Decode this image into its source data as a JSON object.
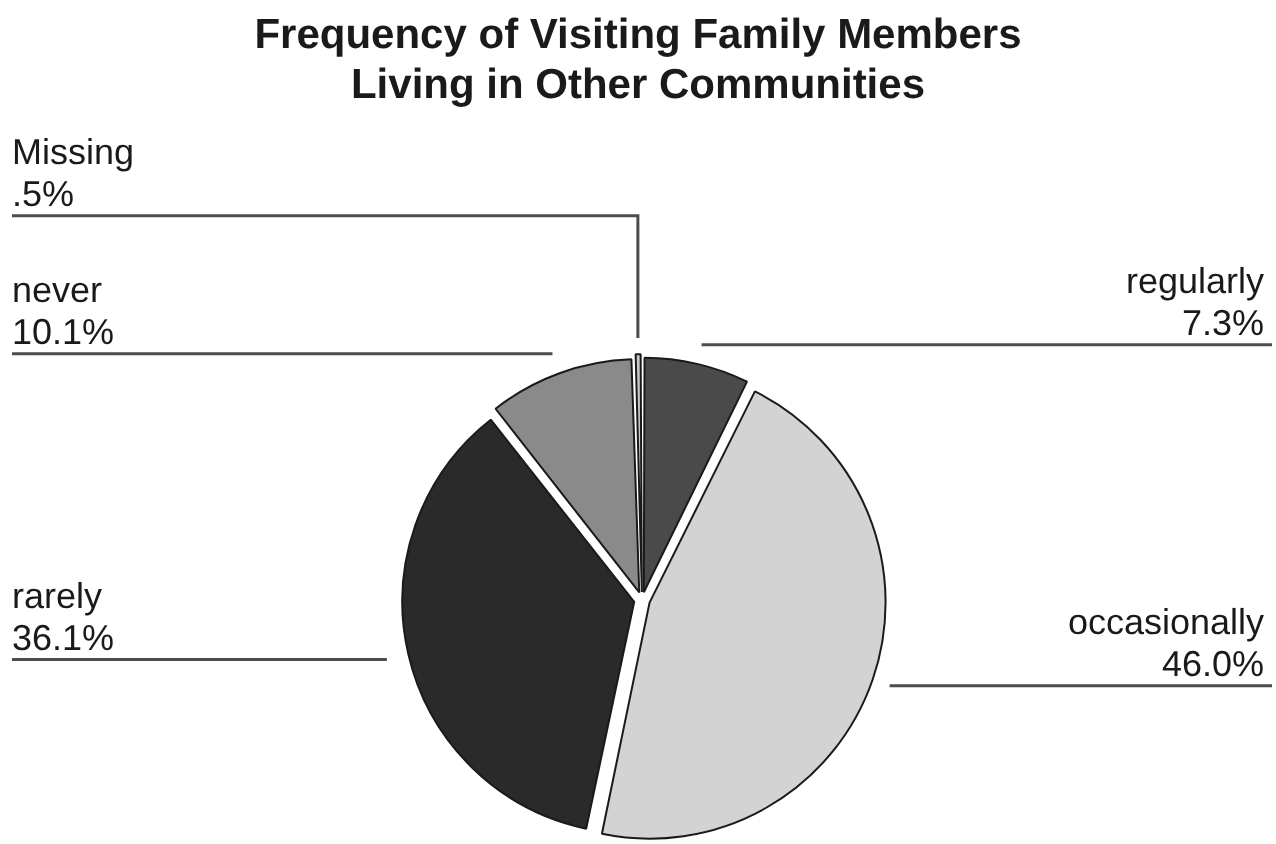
{
  "chart_data": {
    "type": "pie",
    "title": "Frequency of Visiting Family Members Living in Other Communities",
    "categories": [
      "regularly",
      "occasionally",
      "rarely",
      "never",
      "Missing"
    ],
    "values": [
      7.3,
      46.0,
      36.1,
      10.1,
      0.5
    ],
    "colors": [
      "#4a4a4a",
      "#d3d3d3",
      "#2a2a2a",
      "#8a8a8a",
      "#c8c8c8"
    ],
    "value_labels": [
      "7.3%",
      "46.0%",
      "36.1%",
      "10.1%",
      ".5%"
    ]
  }
}
